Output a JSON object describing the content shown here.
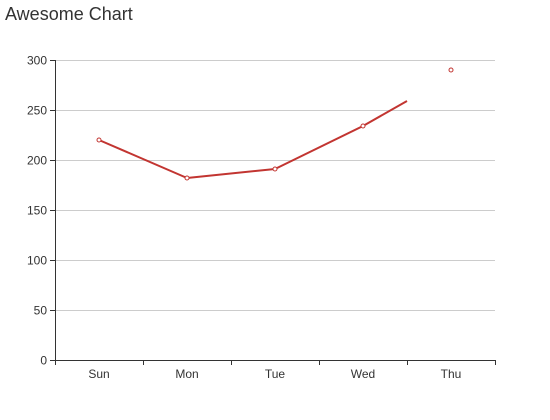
{
  "chart_data": {
    "type": "line",
    "title": "Awesome Chart",
    "xlabel": "",
    "ylabel": "",
    "categories": [
      "Sun",
      "Mon",
      "Tue",
      "Wed",
      "Thu"
    ],
    "y_ticks": [
      "0",
      "50",
      "100",
      "150",
      "200",
      "250",
      "300"
    ],
    "ylim": [
      0,
      300
    ],
    "grid": true,
    "series": [
      {
        "values": [
          220,
          182,
          191,
          234,
          290
        ],
        "color": "#c23531"
      }
    ]
  }
}
